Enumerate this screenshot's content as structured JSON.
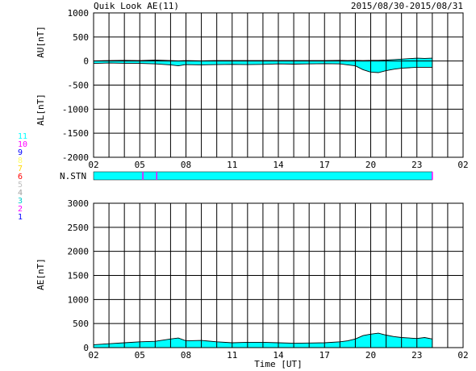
{
  "chart_data": [
    {
      "id": "au_al",
      "type": "area",
      "header_title": "Quik Look AE(11)",
      "header_date": "2015/08/30-2015/08/31",
      "ylabel_top": "AU[nT]",
      "ylabel_bottom": "AL[nT]",
      "ylim": [
        -2000,
        1000
      ],
      "yticks": [
        "1000",
        "500",
        "0",
        "-500",
        "-1000",
        "-1500",
        "-2000"
      ],
      "xlim": [
        2,
        26
      ],
      "xticks": [
        "02",
        "05",
        "08",
        "11",
        "14",
        "17",
        "20",
        "23",
        "02"
      ],
      "grid": true,
      "fill_color": "#00ffff",
      "x": [
        2.0,
        3.0,
        4.0,
        5.0,
        6.0,
        7.0,
        7.5,
        8.0,
        9.0,
        10.0,
        11.0,
        12.0,
        13.0,
        14.0,
        15.0,
        16.0,
        17.0,
        18.0,
        18.5,
        19.0,
        19.5,
        20.0,
        20.5,
        21.0,
        21.5,
        22.0,
        22.5,
        23.0,
        23.5,
        24.0
      ],
      "series": [
        {
          "values": [
            5,
            10,
            15,
            10,
            20,
            10,
            5,
            10,
            5,
            10,
            10,
            10,
            10,
            10,
            10,
            10,
            10,
            15,
            10,
            15,
            10,
            15,
            15,
            20,
            30,
            40,
            50,
            60,
            55,
            60
          ]
        },
        {
          "values": [
            -50,
            -40,
            -45,
            -50,
            -60,
            -80,
            -100,
            -75,
            -80,
            -75,
            -70,
            -75,
            -70,
            -60,
            -65,
            -60,
            -55,
            -60,
            -80,
            -100,
            -180,
            -230,
            -240,
            -200,
            -170,
            -150,
            -140,
            -130,
            -130,
            -130
          ]
        }
      ]
    },
    {
      "id": "n_stn",
      "type": "bar",
      "label": "N.STN",
      "xlim": [
        2,
        26
      ],
      "start": 2,
      "end": 24,
      "markers": [
        5.2,
        6.1
      ],
      "fill_color": "#00ffff",
      "marker_color": "#ff00ff"
    },
    {
      "id": "ae",
      "type": "area",
      "ylabel": "AE[nT]",
      "xlabel": "Time [UT]",
      "ylim": [
        0,
        3000
      ],
      "yticks": [
        "3000",
        "2500",
        "2000",
        "1500",
        "1000",
        "500",
        "0"
      ],
      "xlim": [
        2,
        26
      ],
      "xticks": [
        "02",
        "05",
        "08",
        "11",
        "14",
        "17",
        "20",
        "23",
        "02"
      ],
      "grid": true,
      "fill_color": "#00ffff",
      "x": [
        2.0,
        3.0,
        4.0,
        5.0,
        6.0,
        7.0,
        7.5,
        8.0,
        9.0,
        10.0,
        11.0,
        12.0,
        13.0,
        14.0,
        15.0,
        16.0,
        17.0,
        18.0,
        18.5,
        19.0,
        19.5,
        20.0,
        20.5,
        21.0,
        21.5,
        22.0,
        22.5,
        23.0,
        23.5,
        24.0
      ],
      "series": [
        {
          "values": [
            60,
            80,
            100,
            120,
            130,
            180,
            200,
            140,
            150,
            120,
            100,
            110,
            110,
            100,
            90,
            95,
            100,
            120,
            140,
            180,
            250,
            280,
            300,
            260,
            230,
            210,
            200,
            190,
            210,
            180
          ]
        }
      ]
    }
  ],
  "station_legend": [
    "11",
    "10",
    "9",
    "8",
    "7",
    "6",
    "5",
    "4",
    "3",
    "2",
    "1"
  ],
  "station_colors": [
    "#00ffff",
    "#ff00ff",
    "#0000ff",
    "#ffff66",
    "#ffd700",
    "#ff0000",
    "#c0c0c0",
    "#a0a0a0",
    "#00cccc",
    "#ff00ff",
    "#0000ff"
  ]
}
